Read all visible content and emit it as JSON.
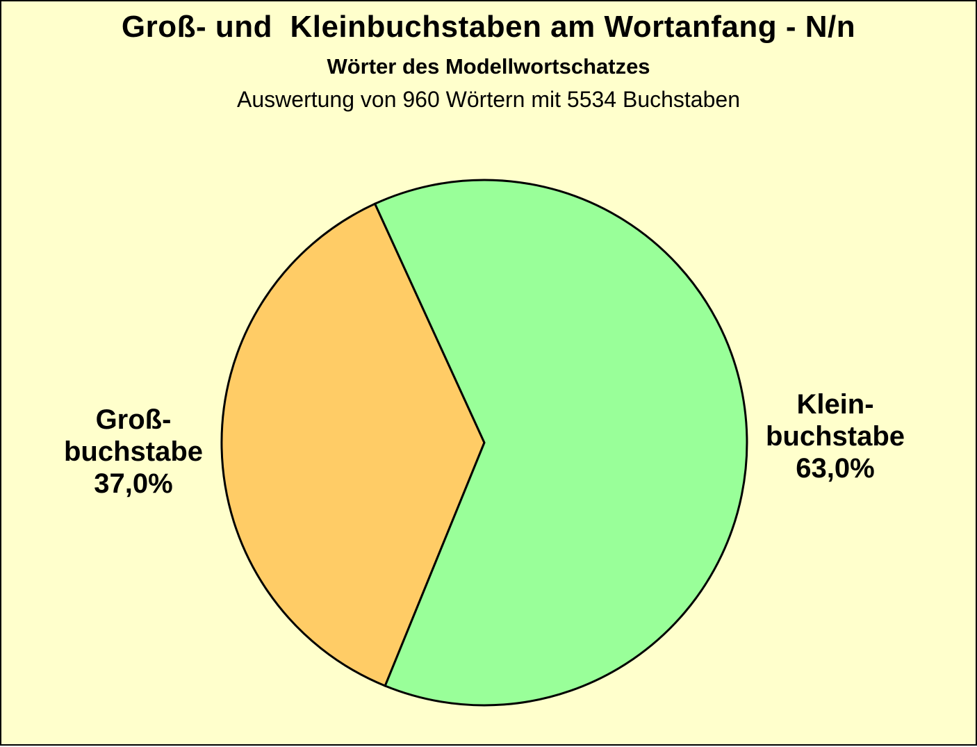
{
  "chart_data": {
    "type": "pie",
    "title": "Groß- und  Kleinbuchstaben am Wortanfang - N/n",
    "subtitle": "Wörter des Modellwortschatzes",
    "note": "Auswertung von 960 Wörtern mit 5534 Buchstaben",
    "slices": [
      {
        "name": "grossbuchstabe",
        "lines": [
          "Groß-",
          "buchstabe",
          "37,0%"
        ],
        "label": "Großbuchstabe",
        "value_pct": 37.0,
        "display_value": "37,0%",
        "color": "#FFCC66"
      },
      {
        "name": "kleinbuchstabe",
        "lines": [
          "Klein-",
          "buchstabe",
          "63,0%"
        ],
        "label": "Kleinbuchstabe",
        "value_pct": 63.0,
        "display_value": "63,0%",
        "color": "#99FF99"
      }
    ],
    "start_angle_deg": 114.6,
    "direction": "ccw",
    "stroke_color": "#000000",
    "stroke_width": 3,
    "background_color": "#FFFFCC",
    "legend_position": "none",
    "labels_placement": "outside-radial"
  }
}
